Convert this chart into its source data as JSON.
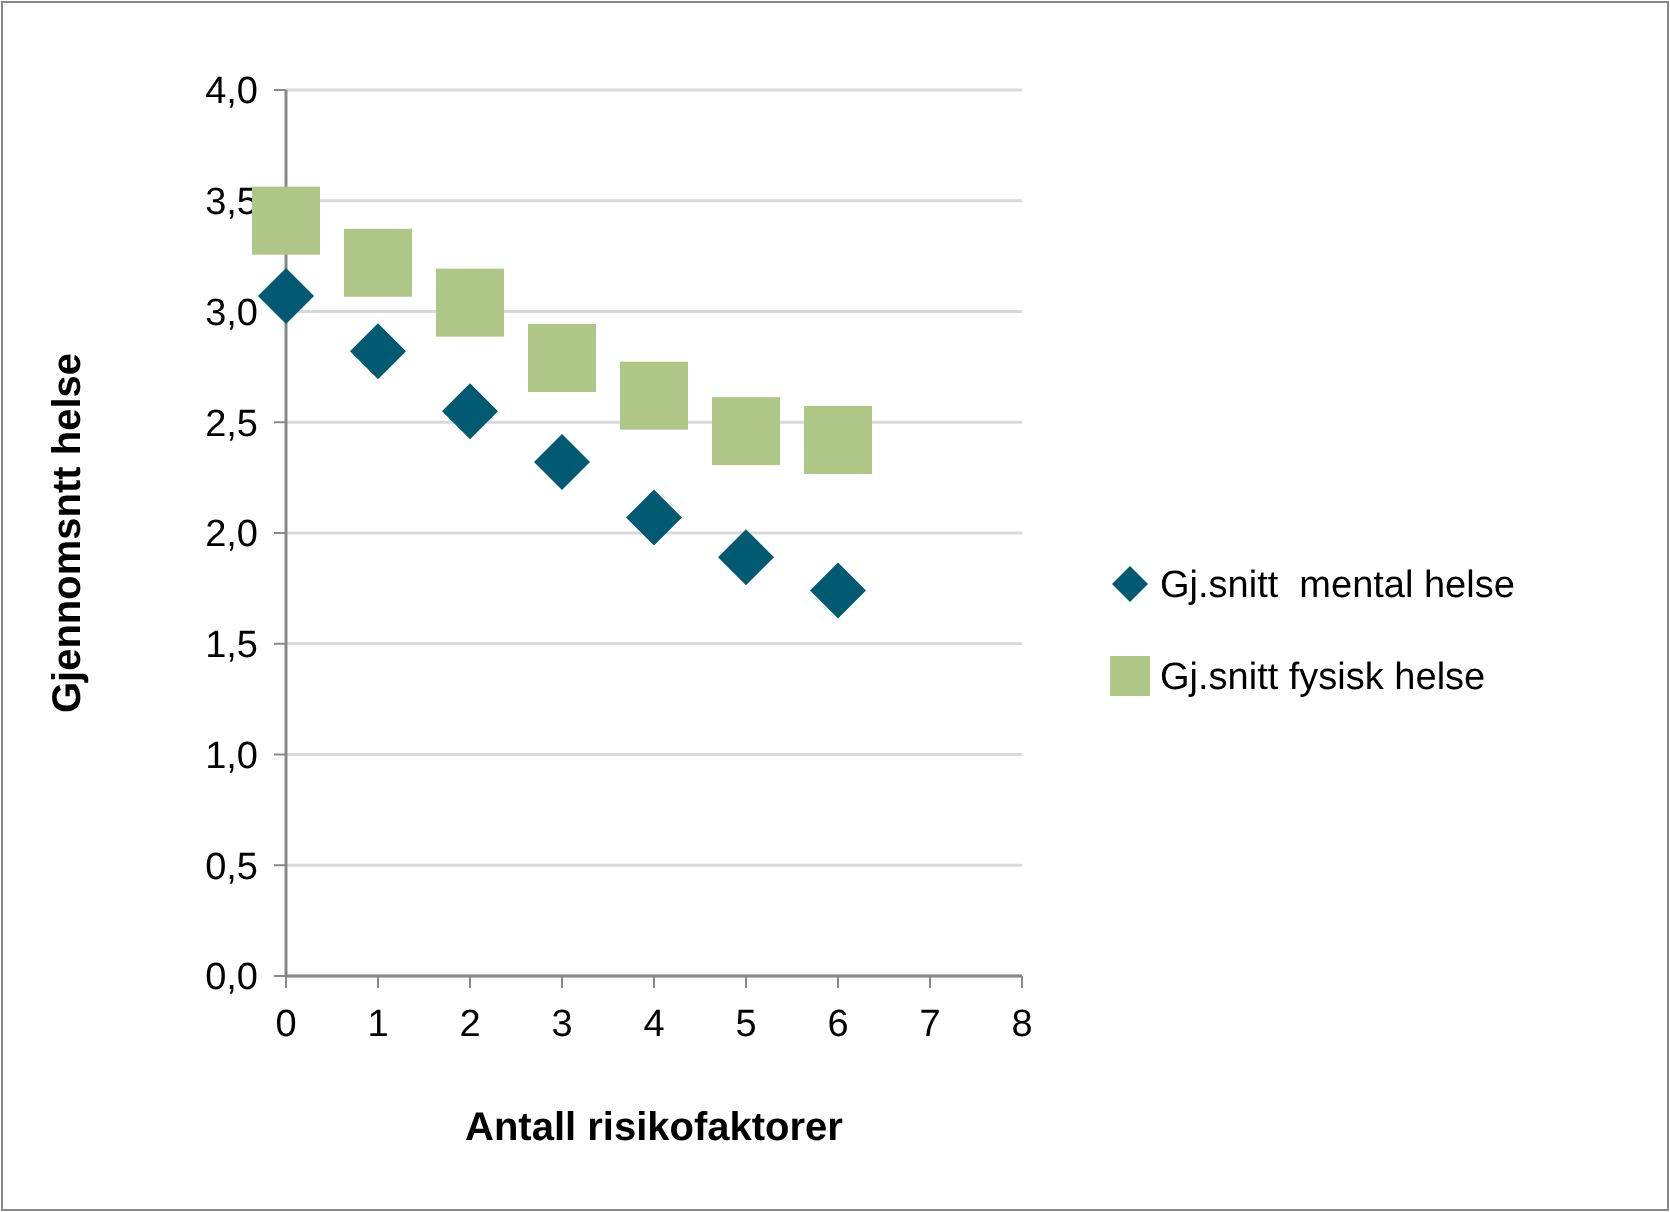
{
  "chart_data": {
    "type": "scatter",
    "xlabel": "Antall risikofaktorer",
    "ylabel": "Gjennomsntt helse",
    "xlim": [
      0,
      8
    ],
    "xticks": [
      0,
      1,
      2,
      3,
      4,
      5,
      6,
      7,
      8
    ],
    "ylim": [
      0,
      4
    ],
    "yticks": [
      {
        "value": 0,
        "label": "0,0"
      },
      {
        "value": 0.5,
        "label": "0,5"
      },
      {
        "value": 1,
        "label": "1,0"
      },
      {
        "value": 1.5,
        "label": "1,5"
      },
      {
        "value": 2,
        "label": "2,0"
      },
      {
        "value": 2.5,
        "label": "2,5"
      },
      {
        "value": 3,
        "label": "3,0"
      },
      {
        "value": 3.5,
        "label": "3,5"
      },
      {
        "value": 4,
        "label": "4,0"
      }
    ],
    "grid": "y",
    "legend": "right",
    "x": [
      0,
      1,
      2,
      3,
      4,
      5,
      6
    ],
    "series": [
      {
        "name": "Gj.snitt  mental helse",
        "color": "#005a72",
        "marker": "diamond",
        "values": [
          3.07,
          2.82,
          2.55,
          2.32,
          2.07,
          1.89,
          1.74
        ]
      },
      {
        "name": "Gj.snitt fysisk helse",
        "color": "#aec686",
        "marker": "square",
        "values": [
          3.41,
          3.22,
          3.04,
          2.79,
          2.62,
          2.46,
          2.42
        ]
      }
    ]
  }
}
